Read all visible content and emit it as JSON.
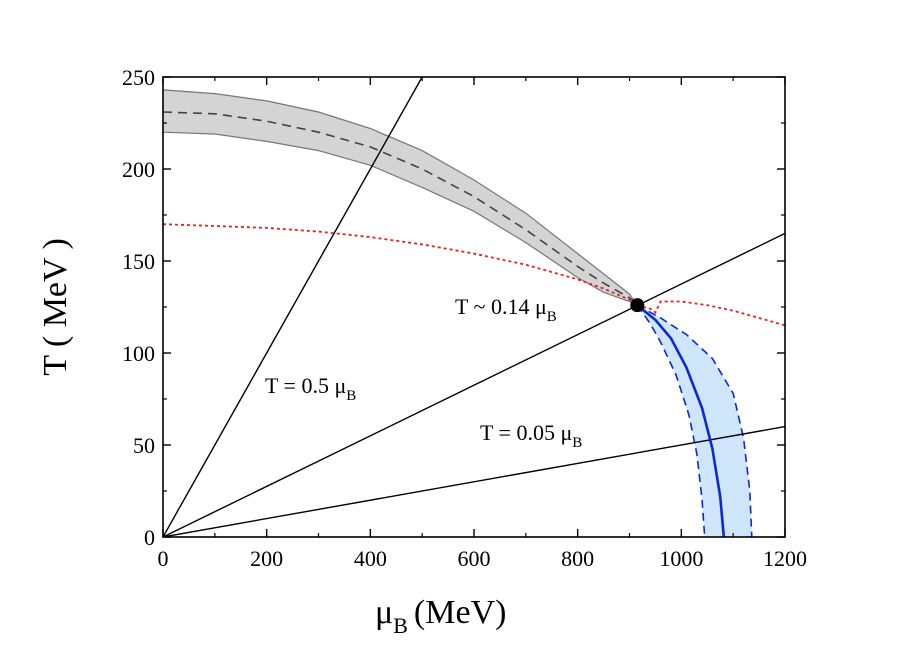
{
  "chart_data": {
    "type": "line",
    "xlabel": "μ",
    "xlabel_sub": "B",
    "xlabel_unit": "(MeV)",
    "ylabel": "T ( MeV )",
    "xlim": [
      0,
      1200
    ],
    "ylim": [
      0,
      250
    ],
    "xticks": [
      "0",
      "200",
      "400",
      "600",
      "800",
      "1000",
      "1200"
    ],
    "yticks": [
      "0",
      "50",
      "100",
      "150",
      "200",
      "250"
    ],
    "grid": false,
    "colors": {
      "grey_band": "#d4d4d4",
      "grey_line": "#444444",
      "red": "#e8201c",
      "blue": "#0a28d8",
      "blue_band": "#cfe6fa",
      "black": "#000000"
    },
    "grey_band": {
      "mu": [
        0,
        100,
        200,
        300,
        400,
        500,
        600,
        700,
        800,
        850,
        900,
        915
      ],
      "upper": [
        243,
        241,
        237,
        231,
        222,
        210,
        194,
        176,
        154,
        143,
        132,
        126
      ],
      "center": [
        231,
        230,
        226,
        220,
        212,
        200,
        185,
        167,
        147,
        138,
        130,
        126
      ],
      "lower": [
        220,
        219,
        215,
        210,
        202,
        190,
        177,
        160,
        141,
        133,
        128,
        126
      ]
    },
    "red_crossover": {
      "mu": [
        0,
        100,
        200,
        300,
        400,
        500,
        600,
        700,
        800,
        850,
        900,
        915
      ],
      "T": [
        170,
        169,
        168,
        166,
        163,
        159,
        154,
        148,
        140,
        135,
        129,
        126
      ]
    },
    "red_spinodal": {
      "mu": [
        915,
        940,
        950,
        960,
        1000,
        1050,
        1100,
        1150,
        1200
      ],
      "T": [
        126,
        124,
        122,
        128,
        128,
        126,
        123,
        119,
        115
      ]
    },
    "blue_line": {
      "mu": [
        915,
        950,
        980,
        1010,
        1040,
        1060,
        1075,
        1082
      ],
      "T": [
        126,
        118,
        108,
        92,
        70,
        48,
        22,
        0
      ]
    },
    "blue_band": {
      "mu_inner": [
        915,
        940,
        960,
        990,
        1015,
        1030,
        1040,
        1045
      ],
      "T_inner": [
        126,
        116,
        106,
        88,
        66,
        45,
        20,
        0
      ],
      "mu_outer": [
        915,
        960,
        1010,
        1060,
        1100,
        1120,
        1132,
        1136
      ],
      "T_outer": [
        126,
        119,
        110,
        97,
        78,
        54,
        25,
        0
      ]
    },
    "rays": [
      {
        "slope": 0.5,
        "label": "T = 0.5 μ",
        "sub": "B"
      },
      {
        "slope": 0.1375,
        "label": "T ~ 0.14 μ",
        "sub": "B"
      },
      {
        "slope": 0.05,
        "label": "T = 0.05 μ",
        "sub": "B"
      }
    ],
    "critical_point": {
      "mu": 915,
      "T": 126
    }
  }
}
